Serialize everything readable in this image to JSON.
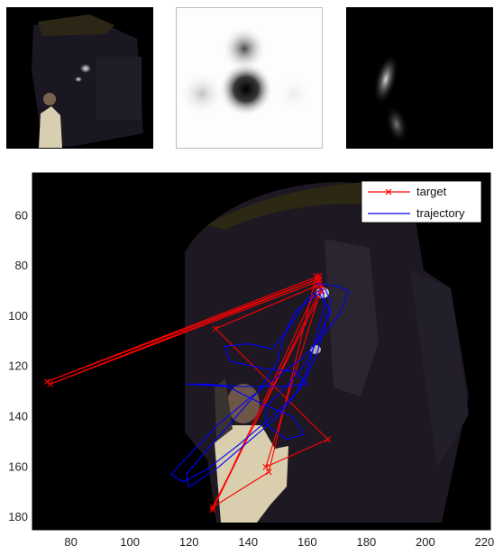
{
  "chart_data": {
    "type": "line",
    "title": "",
    "xlabel": "",
    "ylabel": "",
    "xlim": [
      67,
      222
    ],
    "ylim": [
      185,
      43
    ],
    "y_axis_reversed": true,
    "grid": false,
    "legend_position": "top-right",
    "background": "image",
    "x_ticks": [
      80,
      100,
      120,
      140,
      160,
      180,
      200,
      220
    ],
    "y_ticks": [
      60,
      80,
      100,
      120,
      140,
      160,
      180
    ],
    "series": [
      {
        "name": "target",
        "color": "#ff0000",
        "marker": "x",
        "points": [
          [
            164,
            84
          ],
          [
            72,
            126
          ],
          [
            164,
            85
          ],
          [
            73,
            127
          ],
          [
            164,
            86
          ],
          [
            163,
            88
          ],
          [
            129,
            105
          ],
          [
            167,
            149
          ],
          [
            146,
            160
          ],
          [
            165,
            88
          ],
          [
            128,
            177
          ],
          [
            164,
            87
          ],
          [
            165,
            90
          ],
          [
            128,
            176
          ],
          [
            147,
            162
          ],
          [
            163,
            84
          ]
        ]
      },
      {
        "name": "trajectory",
        "color": "#0000ff",
        "marker": "none",
        "points": [
          [
            163,
            87
          ],
          [
            170,
            88
          ],
          [
            174,
            90
          ],
          [
            171,
            99
          ],
          [
            165,
            108
          ],
          [
            158,
            117
          ],
          [
            150,
            124
          ],
          [
            140,
            133
          ],
          [
            130,
            143
          ],
          [
            121,
            154
          ],
          [
            114,
            163
          ],
          [
            118,
            166
          ],
          [
            126,
            161
          ],
          [
            137,
            151
          ],
          [
            148,
            140
          ],
          [
            156,
            131
          ],
          [
            160,
            122
          ],
          [
            162,
            113
          ],
          [
            164,
            104
          ],
          [
            166,
            95
          ],
          [
            165,
            89
          ],
          [
            160,
            93
          ],
          [
            153,
            106
          ],
          [
            148,
            113
          ],
          [
            140,
            111
          ],
          [
            132,
            112
          ],
          [
            134,
            118
          ],
          [
            146,
            121
          ],
          [
            156,
            122
          ],
          [
            160,
            127
          ],
          [
            151,
            128
          ],
          [
            138,
            128
          ],
          [
            125,
            127
          ],
          [
            119,
            127
          ],
          [
            133,
            128
          ],
          [
            145,
            135
          ],
          [
            155,
            140
          ],
          [
            159,
            147
          ],
          [
            153,
            149
          ],
          [
            146,
            143
          ],
          [
            146,
            136
          ],
          [
            153,
            128
          ],
          [
            160,
            118
          ],
          [
            164,
            108
          ],
          [
            168,
            98
          ],
          [
            164,
            91
          ],
          [
            156,
            98
          ],
          [
            152,
            108
          ],
          [
            150,
            118
          ],
          [
            144,
            129
          ],
          [
            136,
            140
          ],
          [
            127,
            152
          ],
          [
            119,
            163
          ],
          [
            120,
            168
          ],
          [
            130,
            160
          ],
          [
            140,
            150
          ],
          [
            150,
            140
          ],
          [
            158,
            128
          ],
          [
            163,
            116
          ],
          [
            166,
            104
          ],
          [
            168,
            94
          ],
          [
            166,
            89
          ]
        ]
      }
    ]
  },
  "icons": [
    "scene-thumbnail",
    "filter-thumbnail",
    "response-thumbnail"
  ]
}
